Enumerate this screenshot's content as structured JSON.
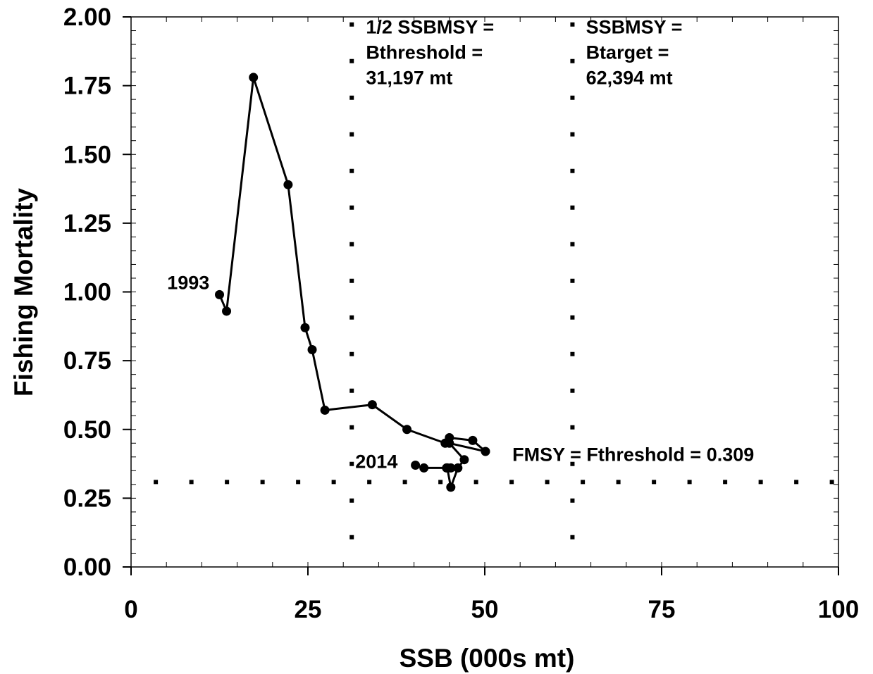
{
  "chart_data": {
    "type": "scatter",
    "xlabel": "SSB (000s mt)",
    "ylabel": "Fishing Mortality",
    "xlim": [
      0,
      100
    ],
    "ylim": [
      0,
      2
    ],
    "xticks": [
      "0",
      "25",
      "50",
      "75",
      "100"
    ],
    "yticks": [
      "0.00",
      "0.25",
      "0.50",
      "0.75",
      "1.00",
      "1.25",
      "1.50",
      "1.75",
      "2.00"
    ],
    "grid": false,
    "legend": "none",
    "series": [
      {
        "connected": true,
        "x": [
          12.5,
          13.5,
          17.3,
          22.2,
          24.6,
          25.6,
          27.4,
          34.1,
          39.0,
          44.4,
          45.0,
          48.3,
          50.1,
          45.0,
          47.1,
          46.2,
          45.2,
          44.7,
          45.2,
          44.6,
          41.4,
          40.2
        ],
        "y": [
          0.99,
          0.93,
          1.78,
          1.39,
          0.87,
          0.79,
          0.57,
          0.59,
          0.5,
          0.45,
          0.47,
          0.46,
          0.42,
          0.45,
          0.39,
          0.36,
          0.29,
          0.36,
          0.36,
          0.36,
          0.36,
          0.37
        ]
      }
    ],
    "reference_lines": [
      {
        "axis": "x",
        "value": 31.197,
        "style": "dotted"
      },
      {
        "axis": "x",
        "value": 62.394,
        "style": "dotted"
      },
      {
        "axis": "y",
        "value": 0.309,
        "style": "dotted"
      }
    ],
    "annotations": [
      {
        "id": "threshold-label",
        "lines": [
          "1/2 SSBMSY =",
          "Bthreshold =",
          "31,197 mt"
        ],
        "x": 33.2,
        "y": 1.94
      },
      {
        "id": "target-label",
        "lines": [
          "SSBMSY =",
          "Btarget =",
          "62,394 mt"
        ],
        "x": 64.3,
        "y": 1.94
      },
      {
        "id": "fmsy-label",
        "lines": [
          "FMSY = Fthreshold =  0.309"
        ],
        "x": 53.9,
        "y": 0.385
      },
      {
        "id": "year-start-label",
        "lines": [
          "1993"
        ],
        "x": 5.1,
        "y": 1.01
      },
      {
        "id": "year-end-label",
        "lines": [
          "2014"
        ],
        "x": 31.7,
        "y": 0.36
      }
    ]
  }
}
